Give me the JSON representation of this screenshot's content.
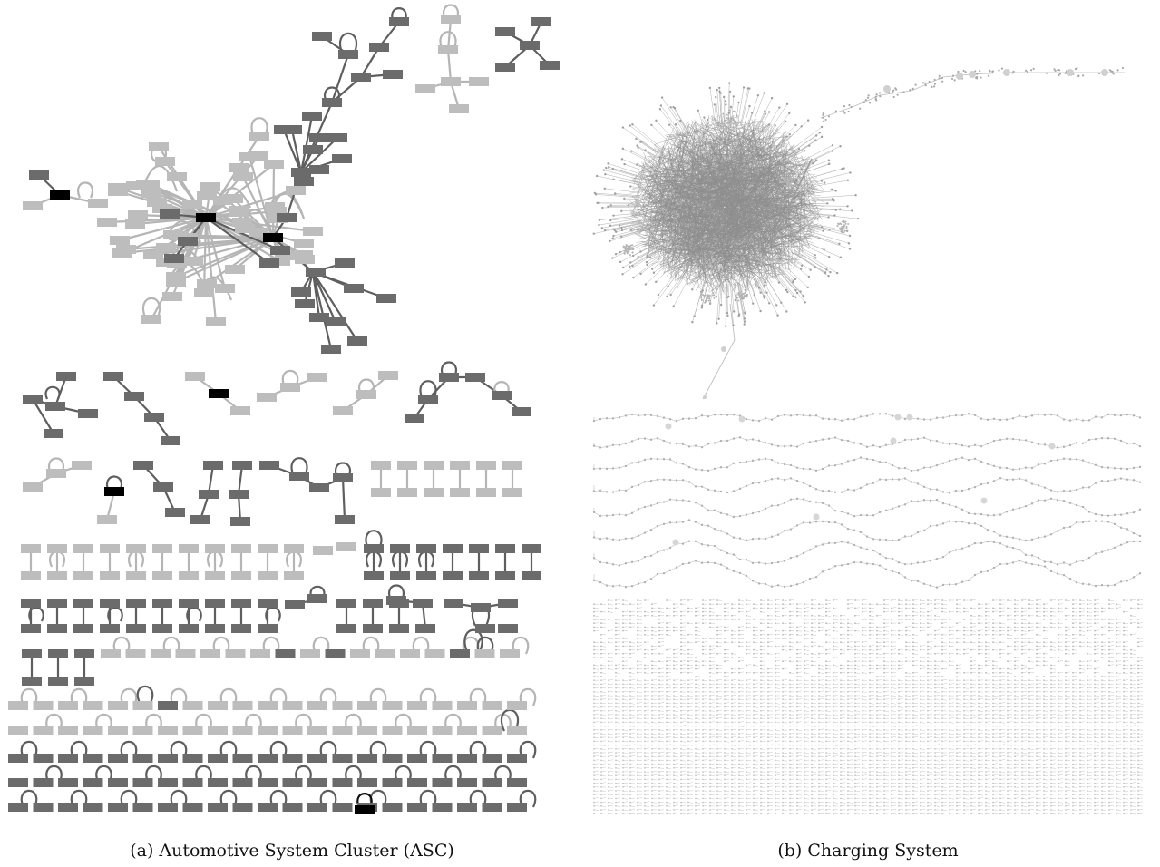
{
  "captions": {
    "a": "(a) Automotive System Cluster (ASC)",
    "b": "(b) Charging System"
  },
  "colors": {
    "dark_node": "#6b6b6b",
    "light_node": "#bdbdbd",
    "highlight_node": "#000000",
    "edge_dark": "#5e5e5e",
    "edge_light": "#b5b5b5",
    "cs_graph": "#9a9a9a"
  }
}
